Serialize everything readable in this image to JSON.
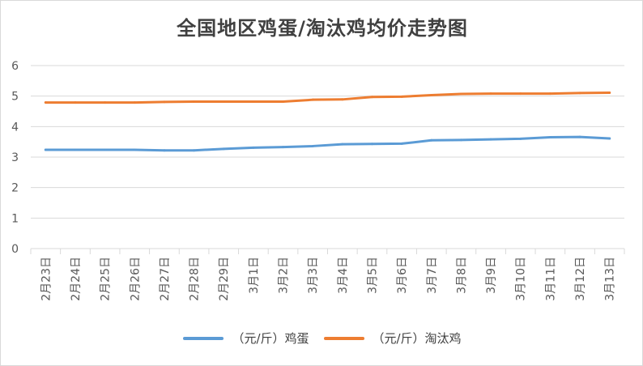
{
  "chart_data": {
    "type": "line",
    "title": "全国地区鸡蛋/淘汰鸡均价走势图",
    "categories": [
      "2月23日",
      "2月24日",
      "2月25日",
      "2月26日",
      "2月27日",
      "2月28日",
      "2月29日",
      "3月1日",
      "3月2日",
      "3月3日",
      "3月4日",
      "3月5日",
      "3月6日",
      "3月7日",
      "3月8日",
      "3月9日",
      "3月10日",
      "3月11日",
      "3月12日",
      "3月13日"
    ],
    "series": [
      {
        "name": "（元/斤）鸡蛋",
        "color": "#5b9bd5",
        "values": [
          3.24,
          3.24,
          3.24,
          3.24,
          3.22,
          3.22,
          3.27,
          3.31,
          3.33,
          3.36,
          3.42,
          3.43,
          3.44,
          3.55,
          3.56,
          3.58,
          3.6,
          3.65,
          3.66,
          3.61
        ]
      },
      {
        "name": "（元/斤）淘汰鸡",
        "color": "#ed7d31",
        "values": [
          4.79,
          4.79,
          4.79,
          4.79,
          4.81,
          4.82,
          4.82,
          4.82,
          4.82,
          4.88,
          4.89,
          4.97,
          4.98,
          5.03,
          5.07,
          5.08,
          5.08,
          5.08,
          5.1,
          5.11
        ]
      }
    ],
    "ylim": [
      0,
      6
    ],
    "yticks": [
      0,
      1,
      2,
      3,
      4,
      5,
      6
    ],
    "grid": true,
    "legend": "bottom"
  }
}
